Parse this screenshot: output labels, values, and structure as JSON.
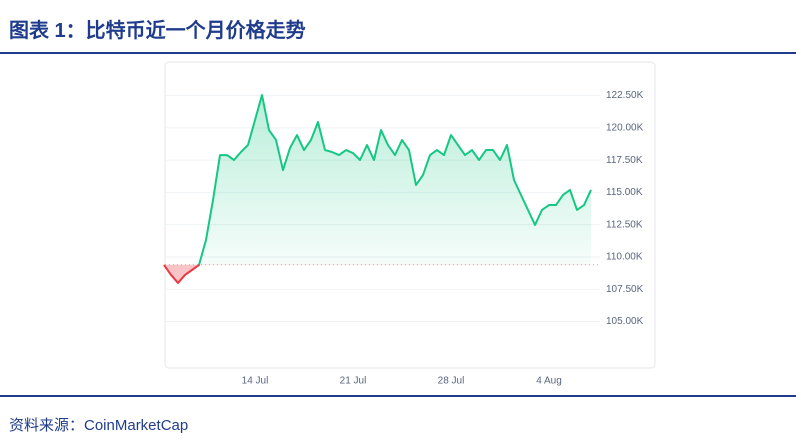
{
  "title": "图表 1：比特币近一个月价格走势",
  "source": "资料来源：CoinMarketCap",
  "chart_data": {
    "type": "line",
    "categories": [
      null,
      null,
      null,
      null,
      null,
      null,
      null,
      null,
      null,
      null,
      null,
      null,
      null,
      "14 Jul",
      null,
      null,
      null,
      null,
      null,
      null,
      null,
      null,
      null,
      null,
      null,
      null,
      null,
      "21 Jul",
      null,
      null,
      null,
      null,
      null,
      null,
      null,
      null,
      null,
      null,
      null,
      null,
      null,
      "28 Jul",
      null,
      null,
      null,
      null,
      null,
      null,
      null,
      null,
      null,
      null,
      null,
      null,
      null,
      "4 Aug",
      null,
      null,
      null,
      null,
      null,
      null
    ],
    "series": [
      {
        "color": "#16c784",
        "below_color": "#ea3943",
        "values": [
          109380,
          108610,
          107990,
          108610,
          108990,
          109380,
          111320,
          114410,
          117890,
          117890,
          117510,
          118130,
          118670,
          120600,
          122540,
          119830,
          119060,
          116730,
          118440,
          119440,
          118280,
          119060,
          120450,
          118280,
          118130,
          117890,
          118280,
          118050,
          117510,
          118670,
          117510,
          119830,
          118670,
          117890,
          119060,
          118280,
          115570,
          116350,
          117890,
          118280,
          117890,
          119440,
          118670,
          117890,
          118280,
          117510,
          118280,
          118280,
          117510,
          118670,
          115960,
          114800,
          113640,
          112480,
          113640,
          114020,
          114020,
          114800,
          115190,
          113640,
          114020,
          115190
        ]
      }
    ],
    "reference_line": 109400,
    "ylim": [
      101400,
      125100
    ],
    "yticks": [
      {
        "value": 105000,
        "label": "105.00K"
      },
      {
        "value": 107500,
        "label": "107.50K"
      },
      {
        "value": 110000,
        "label": "110.00K"
      },
      {
        "value": 112500,
        "label": "112.50K"
      },
      {
        "value": 115000,
        "label": "115.00K"
      },
      {
        "value": 117500,
        "label": "117.50K"
      },
      {
        "value": 120000,
        "label": "120.00K"
      },
      {
        "value": 122500,
        "label": "122.50K"
      }
    ],
    "grid": true
  }
}
